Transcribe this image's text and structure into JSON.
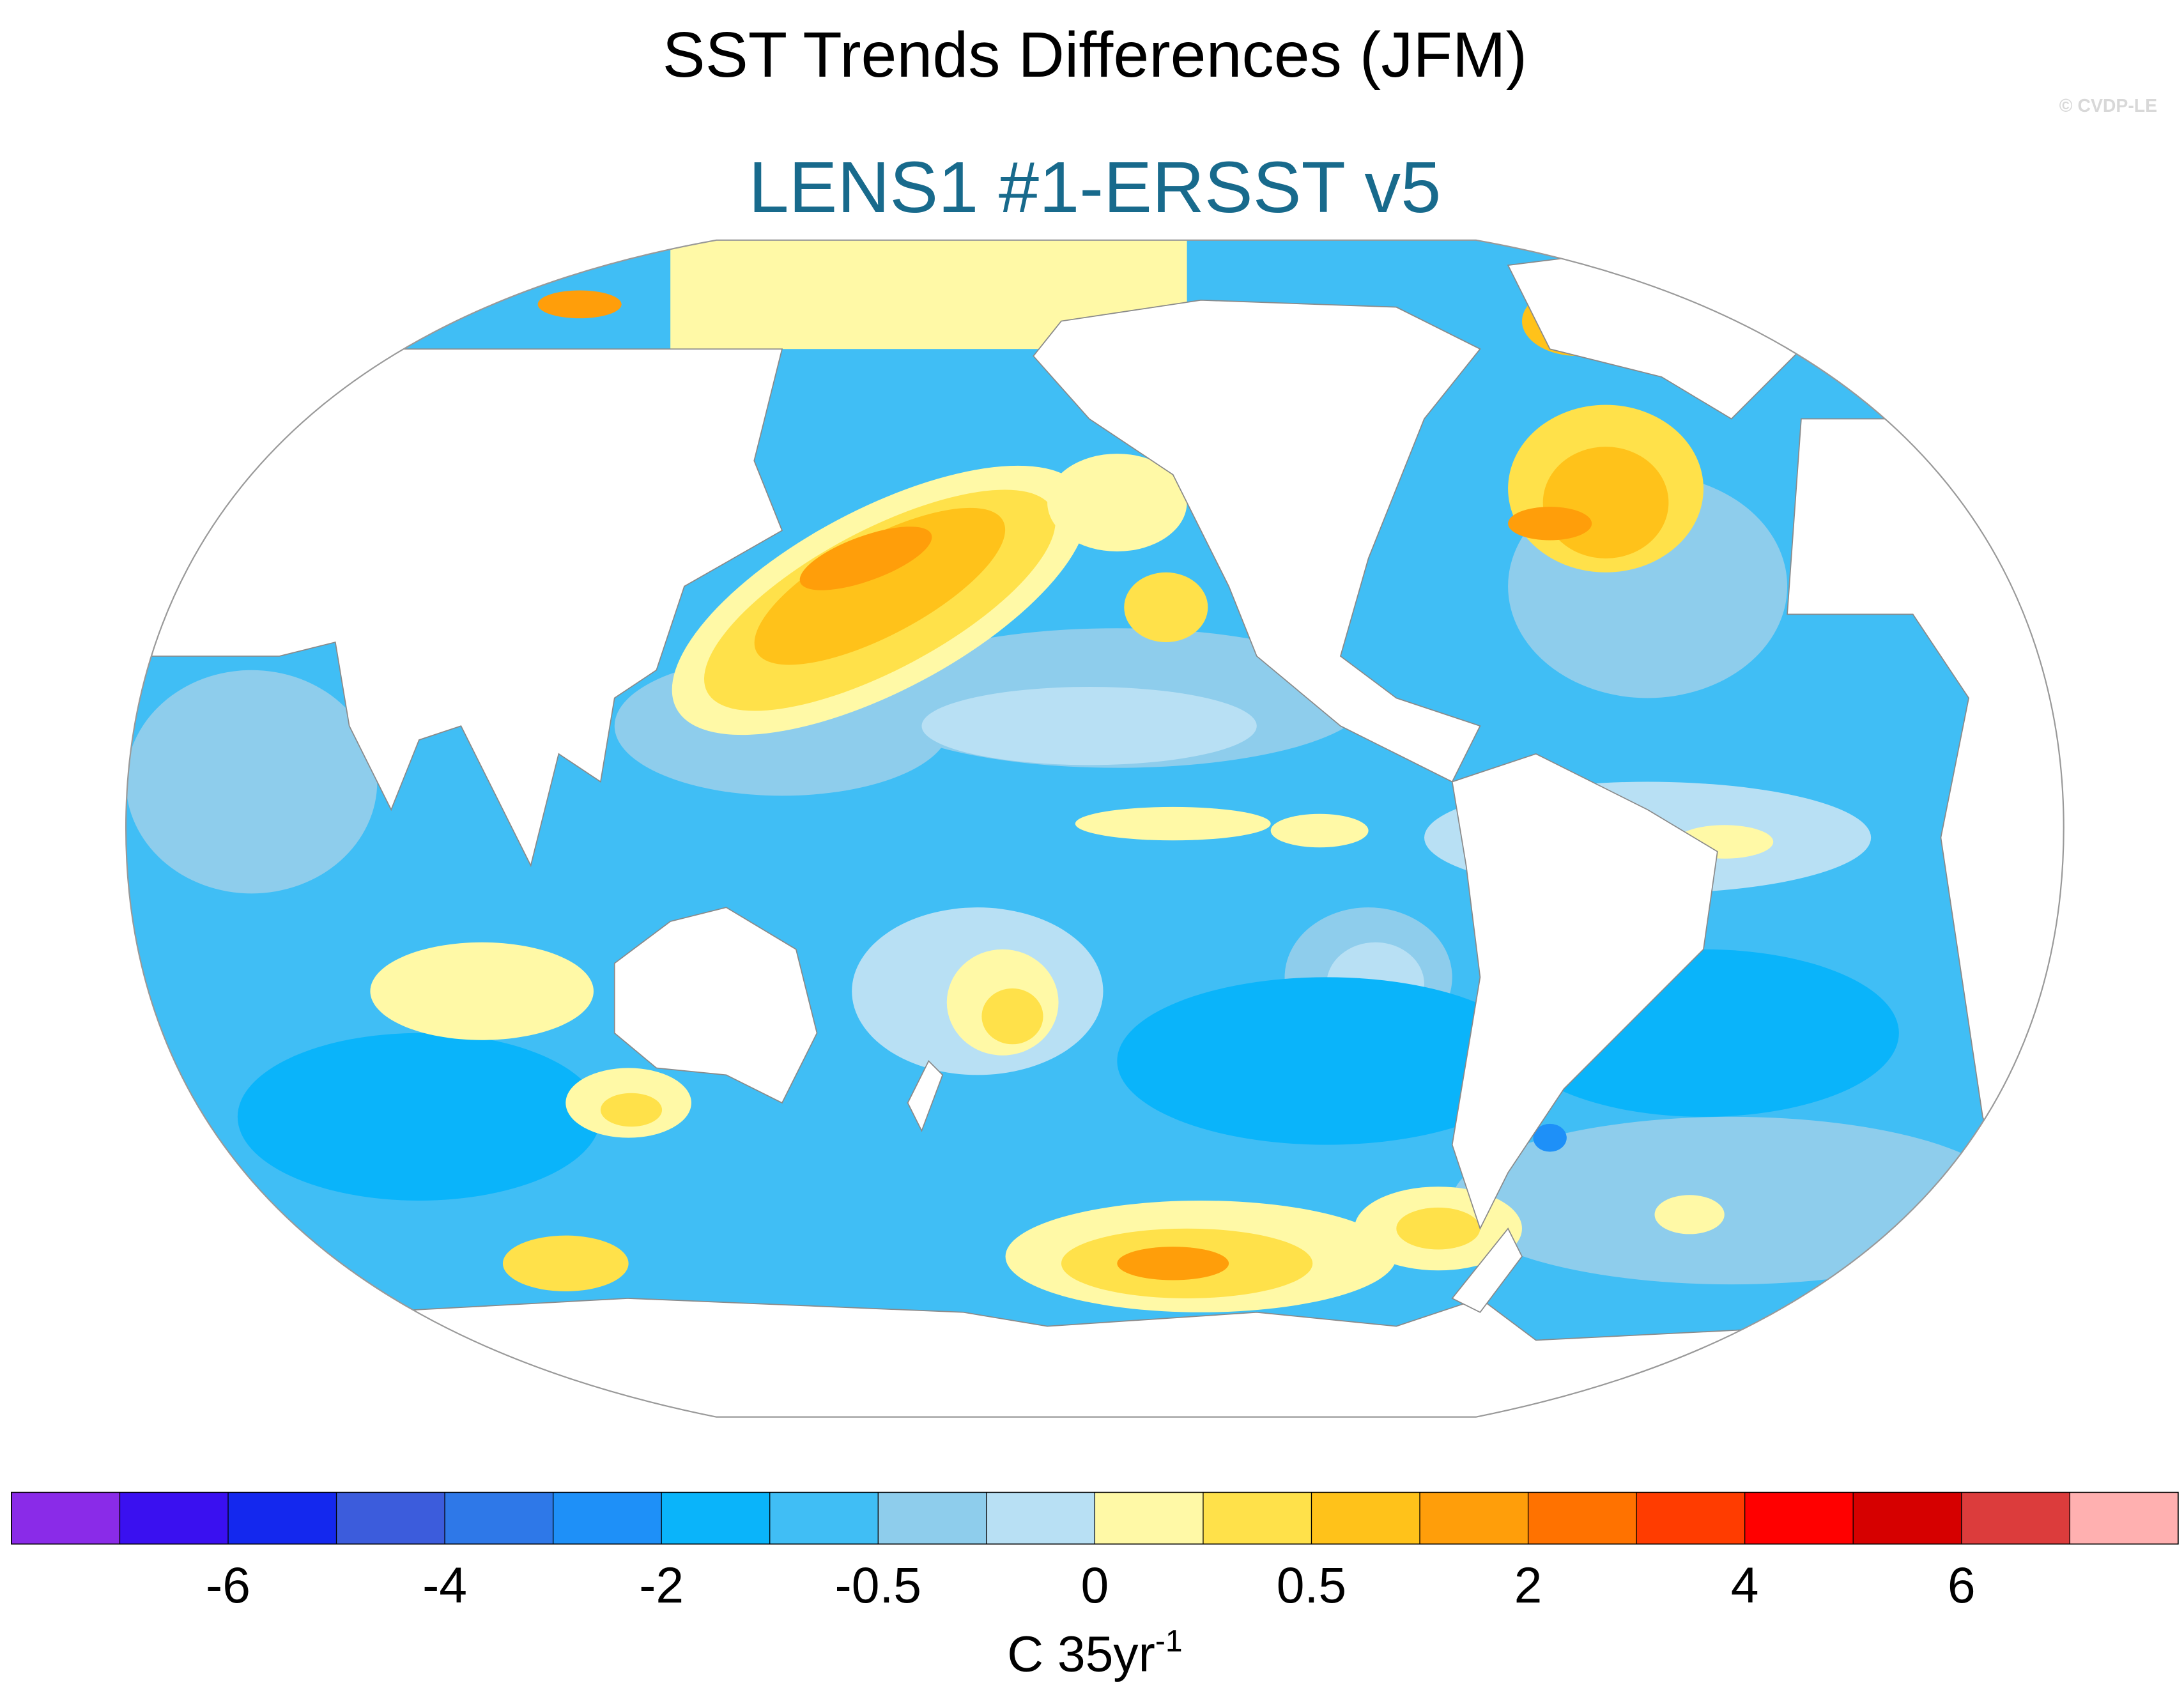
{
  "title": "SST Trends Differences (JFM)",
  "subtitle": "LENS1 #1-ERSST v5",
  "watermark": "© CVDP-LE",
  "colorbar": {
    "levels": [
      -7,
      -6,
      -5,
      -4,
      -3,
      -2,
      -1,
      -0.5,
      -0.25,
      0,
      0.25,
      0.5,
      1,
      2,
      3,
      4,
      5,
      6,
      7
    ],
    "colors": [
      "#8a2be8",
      "#3a10f0",
      "#1428ee",
      "#3c5cdc",
      "#2e78e8",
      "#1e90f8",
      "#0ab4fa",
      "#40bef5",
      "#8ecdec",
      "#b8e0f4",
      "#fff9a6",
      "#ffe14a",
      "#ffc21a",
      "#ff9e0a",
      "#ff7200",
      "#ff3c00",
      "#ff0000",
      "#d60000",
      "#dc3c3c",
      "#ffb0b0"
    ],
    "unit_label": "C 35yr",
    "unit_superscript": "-1"
  }
}
